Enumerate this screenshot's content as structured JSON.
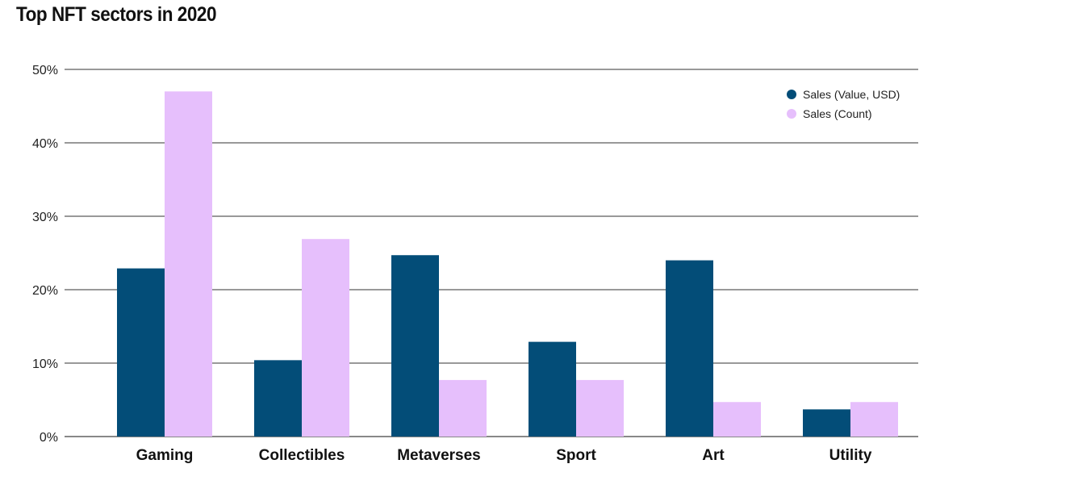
{
  "chart_data": {
    "type": "bar",
    "title": "Top NFT sectors in 2020",
    "categories": [
      "Gaming",
      "Collectibles",
      "Metaverses",
      "Sport",
      "Art",
      "Utility"
    ],
    "series": [
      {
        "name": "Sales (Value, USD)",
        "color": "#034d78",
        "values": [
          22.9,
          10.4,
          24.7,
          12.9,
          24.0,
          3.7
        ]
      },
      {
        "name": "Sales (Count)",
        "color": "#e6bffc",
        "values": [
          47.0,
          26.9,
          7.7,
          7.7,
          4.7,
          4.7
        ]
      }
    ],
    "ylim": [
      0,
      50
    ],
    "yticks": [
      "0%",
      "10%",
      "20%",
      "30%",
      "40%",
      "50%"
    ],
    "grid": true,
    "legend": "top-right",
    "xlabel": "",
    "ylabel": ""
  }
}
